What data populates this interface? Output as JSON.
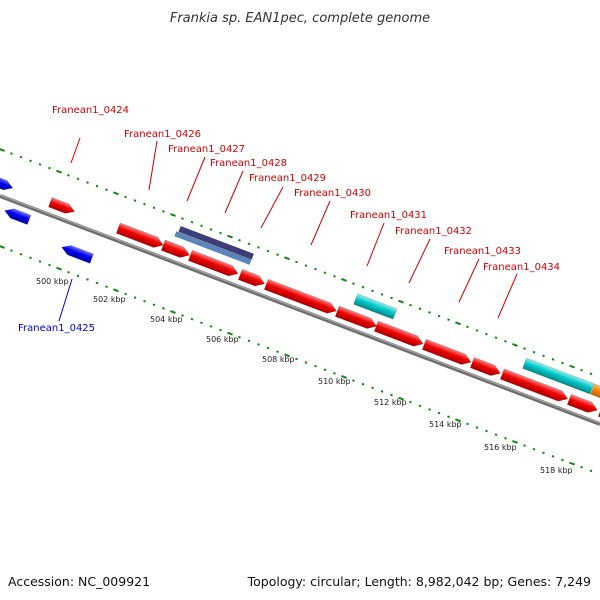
{
  "title": "Frankia sp. EAN1pec, complete genome",
  "footer": {
    "accession": "Accession: NC_009921",
    "summary": "Topology: circular; Length: 8,982,042 bp; Genes: 7,249"
  },
  "colors": {
    "forward_gene": "#ee0000",
    "reverse_gene": "#0000ee",
    "rna_gene": "#00c0c0",
    "other_gene": "#ff8800",
    "pseudo_dark": "#3d3d7a",
    "pseudo_light": "#5a86c0",
    "backbone": "#777777",
    "ticks": "#118811",
    "forward_label": "#cc0000",
    "reverse_label": "#0000cc"
  },
  "scale_labels": [
    "500 kbp",
    "502 kbp",
    "504 kbp",
    "506 kbp",
    "508 kbp",
    "510 kbp",
    "512 kbp",
    "514 kbp",
    "516 kbp",
    "518 kbp"
  ],
  "gene_labels": {
    "forward": [
      "Franean1_0424",
      "Franean1_0426",
      "Franean1_0427",
      "Franean1_0428",
      "Franean1_0429",
      "Franean1_0430",
      "Franean1_0431",
      "Franean1_0432",
      "Franean1_0433",
      "Franean1_0434"
    ],
    "reverse": [
      "Franean1_0425"
    ]
  }
}
